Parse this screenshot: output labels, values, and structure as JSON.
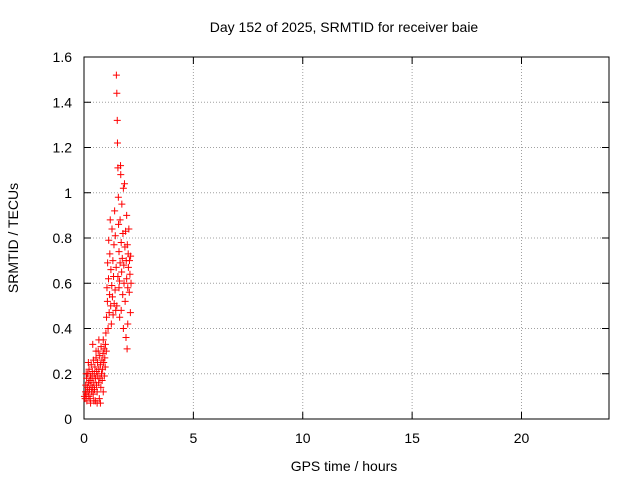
{
  "chart_data": {
    "type": "scatter",
    "title": "Day 152 of 2025, SRMTID for receiver baie",
    "xlabel": "GPS time / hours",
    "ylabel": "SRMTID / TECUs",
    "xlim": [
      0,
      24
    ],
    "ylim": [
      0,
      1.6
    ],
    "x_ticks": [
      0,
      5,
      10,
      15,
      20
    ],
    "x_tick_labels": [
      "0",
      "5",
      "10",
      "15",
      "20"
    ],
    "y_ticks": [
      0,
      0.2,
      0.4,
      0.6,
      0.8,
      1.0,
      1.2,
      1.4,
      1.6
    ],
    "y_tick_labels": [
      "0",
      "0.2",
      "0.4",
      "0.6",
      "0.8",
      "1",
      "1.2",
      "1.4",
      "1.6"
    ],
    "grid": true,
    "marker": "+",
    "series": [
      {
        "name": "SRMTID",
        "color": "#ff0000",
        "points": [
          [
            0.02,
            0.1
          ],
          [
            0.05,
            0.09
          ],
          [
            0.07,
            0.12
          ],
          [
            0.08,
            0.15
          ],
          [
            0.1,
            0.11
          ],
          [
            0.12,
            0.18
          ],
          [
            0.13,
            0.08
          ],
          [
            0.15,
            0.14
          ],
          [
            0.17,
            0.2
          ],
          [
            0.18,
            0.12
          ],
          [
            0.2,
            0.16
          ],
          [
            0.22,
            0.1
          ],
          [
            0.23,
            0.22
          ],
          [
            0.25,
            0.13
          ],
          [
            0.27,
            0.17
          ],
          [
            0.28,
            0.09
          ],
          [
            0.3,
            0.19
          ],
          [
            0.32,
            0.15
          ],
          [
            0.33,
            0.24
          ],
          [
            0.35,
            0.12
          ],
          [
            0.37,
            0.18
          ],
          [
            0.38,
            0.21
          ],
          [
            0.4,
            0.14
          ],
          [
            0.42,
            0.11
          ],
          [
            0.43,
            0.26
          ],
          [
            0.45,
            0.16
          ],
          [
            0.47,
            0.2
          ],
          [
            0.48,
            0.13
          ],
          [
            0.5,
            0.23
          ],
          [
            0.52,
            0.08
          ],
          [
            0.53,
            0.18
          ],
          [
            0.55,
            0.27
          ],
          [
            0.57,
            0.15
          ],
          [
            0.58,
            0.21
          ],
          [
            0.6,
            0.12
          ],
          [
            0.62,
            0.25
          ],
          [
            0.63,
            0.19
          ],
          [
            0.65,
            0.3
          ],
          [
            0.67,
            0.16
          ],
          [
            0.68,
            0.22
          ],
          [
            0.7,
            0.09
          ],
          [
            0.72,
            0.28
          ],
          [
            0.73,
            0.18
          ],
          [
            0.75,
            0.24
          ],
          [
            0.77,
            0.14
          ],
          [
            0.78,
            0.32
          ],
          [
            0.8,
            0.2
          ],
          [
            0.82,
            0.26
          ],
          [
            0.83,
            0.17
          ],
          [
            0.85,
            0.22
          ],
          [
            0.87,
            0.29
          ],
          [
            0.88,
            0.12
          ],
          [
            0.9,
            0.25
          ],
          [
            0.92,
            0.31
          ],
          [
            0.93,
            0.19
          ],
          [
            0.95,
            0.27
          ],
          [
            0.97,
            0.23
          ],
          [
            0.98,
            0.33
          ],
          [
            0.3,
            0.07
          ],
          [
            0.45,
            0.08
          ],
          [
            0.6,
            0.07
          ],
          [
            0.75,
            0.07
          ],
          [
            0.4,
            0.33
          ],
          [
            0.55,
            0.3
          ],
          [
            0.2,
            0.25
          ],
          [
            0.1,
            0.2
          ],
          [
            0.68,
            0.35
          ],
          [
            0.88,
            0.35
          ],
          [
            1.0,
            0.38
          ],
          [
            1.02,
            0.3
          ],
          [
            1.03,
            0.45
          ],
          [
            1.05,
            0.58
          ],
          [
            1.07,
            0.52
          ],
          [
            1.08,
            0.69
          ],
          [
            1.1,
            0.4
          ],
          [
            1.12,
            0.62
          ],
          [
            1.13,
            0.79
          ],
          [
            1.15,
            0.47
          ],
          [
            1.17,
            0.55
          ],
          [
            1.18,
            0.73
          ],
          [
            1.2,
            0.88
          ],
          [
            1.22,
            0.5
          ],
          [
            1.23,
            0.66
          ],
          [
            1.25,
            0.42
          ],
          [
            1.27,
            0.59
          ],
          [
            1.28,
            0.84
          ],
          [
            1.3,
            0.54
          ],
          [
            1.32,
            0.7
          ],
          [
            1.33,
            0.46
          ],
          [
            1.35,
            0.63
          ],
          [
            1.37,
            0.77
          ],
          [
            1.38,
            0.51
          ],
          [
            1.4,
            0.92
          ],
          [
            1.42,
            0.57
          ],
          [
            1.43,
            0.81
          ],
          [
            1.45,
            0.48
          ],
          [
            1.47,
            0.67
          ],
          [
            1.48,
            1.52
          ],
          [
            1.5,
            1.44
          ],
          [
            1.52,
            1.32
          ],
          [
            1.53,
            1.22
          ],
          [
            1.55,
            1.11
          ],
          [
            1.57,
            0.98
          ],
          [
            1.58,
            0.86
          ],
          [
            1.6,
            0.74
          ],
          [
            1.62,
            0.61
          ],
          [
            1.63,
            0.45
          ],
          [
            1.65,
            0.88
          ],
          [
            1.67,
            1.12
          ],
          [
            1.68,
            1.08
          ],
          [
            1.7,
            0.78
          ],
          [
            1.72,
            0.65
          ],
          [
            1.73,
            0.95
          ],
          [
            1.75,
            0.71
          ],
          [
            1.77,
            0.55
          ],
          [
            1.78,
            0.82
          ],
          [
            1.8,
            1.02
          ],
          [
            1.82,
            0.68
          ],
          [
            1.83,
            0.6
          ],
          [
            1.85,
            1.04
          ],
          [
            1.87,
            0.76
          ],
          [
            1.88,
            0.52
          ],
          [
            1.9,
            0.83
          ],
          [
            1.92,
            0.36
          ],
          [
            1.93,
            0.7
          ],
          [
            1.95,
            0.62
          ],
          [
            1.97,
            0.31
          ],
          [
            1.98,
            0.77
          ],
          [
            2.0,
            0.58
          ],
          [
            2.02,
            0.73
          ],
          [
            2.03,
            0.67
          ],
          [
            2.05,
            0.84
          ],
          [
            2.07,
            0.56
          ],
          [
            2.08,
            0.7
          ],
          [
            2.1,
            0.64
          ],
          [
            2.12,
            0.47
          ],
          [
            2.13,
            0.72
          ],
          [
            2.15,
            0.6
          ],
          [
            1.5,
            0.5
          ],
          [
            1.6,
            0.58
          ],
          [
            1.7,
            0.48
          ],
          [
            1.8,
            0.4
          ],
          [
            1.55,
            0.63
          ],
          [
            1.65,
            0.69
          ],
          [
            1.95,
            0.9
          ],
          [
            2.0,
            0.42
          ]
        ]
      }
    ]
  }
}
